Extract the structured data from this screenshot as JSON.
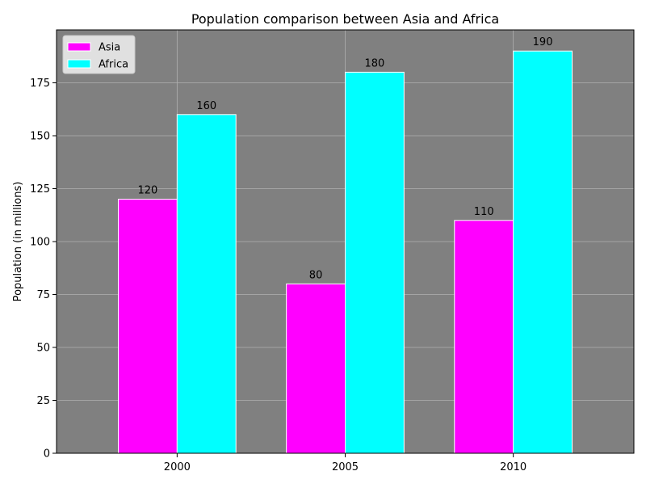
{
  "chart_data": {
    "type": "bar",
    "title": "Population comparison between Asia and Africa",
    "xlabel": "",
    "ylabel": "Population (in millions)",
    "categories": [
      "2000",
      "2005",
      "2010"
    ],
    "series": [
      {
        "name": "Asia",
        "values": [
          120,
          80,
          110
        ],
        "color": "#ff00ff"
      },
      {
        "name": "Africa",
        "values": [
          160,
          180,
          190
        ],
        "color": "#00ffff"
      }
    ],
    "ylim": [
      0,
      200
    ],
    "yticks": [
      0,
      25,
      50,
      75,
      100,
      125,
      150,
      175
    ],
    "grid": true,
    "legend_position": "top-left",
    "plot_background": "#808080",
    "bar_edge_color": "#ffffff"
  }
}
